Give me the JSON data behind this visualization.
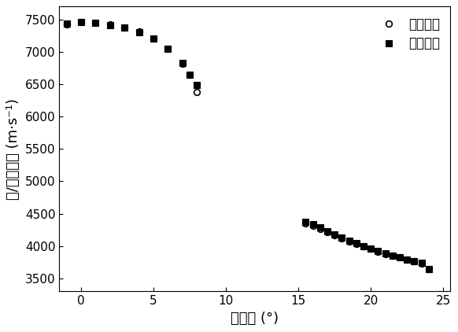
{
  "title": "",
  "xlabel": "入射角 (°)",
  "ylabel": "纵/横波声速 (m·s⁻¹)",
  "xlim": [
    -1.5,
    25.5
  ],
  "ylim": [
    3300,
    7700
  ],
  "yticks": [
    3500,
    4000,
    4500,
    5000,
    5500,
    6000,
    6500,
    7000,
    7500
  ],
  "xticks": [
    0,
    5,
    10,
    15,
    20,
    25
  ],
  "legend_exp": "实验测量",
  "legend_theo": "理论计算",
  "exp_x1": [
    -1,
    0,
    1,
    2,
    3,
    4,
    5,
    6,
    7,
    7.5,
    8
  ],
  "exp_y1": [
    7430,
    7455,
    7450,
    7420,
    7380,
    7310,
    7200,
    7050,
    6820,
    6650,
    6380
  ],
  "theo_x1": [
    -1,
    0,
    1,
    2,
    3,
    4,
    5,
    6,
    7,
    7.5,
    8
  ],
  "theo_y1": [
    7435,
    7455,
    7445,
    7415,
    7375,
    7305,
    7200,
    7050,
    6830,
    6650,
    6490
  ],
  "exp_x2": [
    15.5,
    16,
    16.5,
    17,
    17.5,
    18,
    18.5,
    19,
    19.5,
    20,
    20.5,
    21,
    21.5,
    22,
    22.5,
    23,
    23.5,
    24
  ],
  "exp_y2": [
    4350,
    4310,
    4260,
    4210,
    4165,
    4115,
    4070,
    4030,
    3990,
    3955,
    3915,
    3880,
    3850,
    3820,
    3790,
    3760,
    3730,
    3640
  ],
  "theo_x2": [
    15.5,
    16,
    16.5,
    17,
    17.5,
    18,
    18.5,
    19,
    19.5,
    20,
    20.5,
    21,
    21.5,
    22,
    22.5,
    23,
    23.5,
    24
  ],
  "theo_y2": [
    4375,
    4335,
    4290,
    4230,
    4175,
    4125,
    4080,
    4040,
    3998,
    3960,
    3920,
    3885,
    3855,
    3825,
    3795,
    3765,
    3740,
    3645
  ],
  "marker_exp": "o",
  "marker_theo": "s",
  "color": "black",
  "markersize_exp": 5.5,
  "markersize_theo": 5.5,
  "background_color": "#ffffff",
  "font_paths": []
}
